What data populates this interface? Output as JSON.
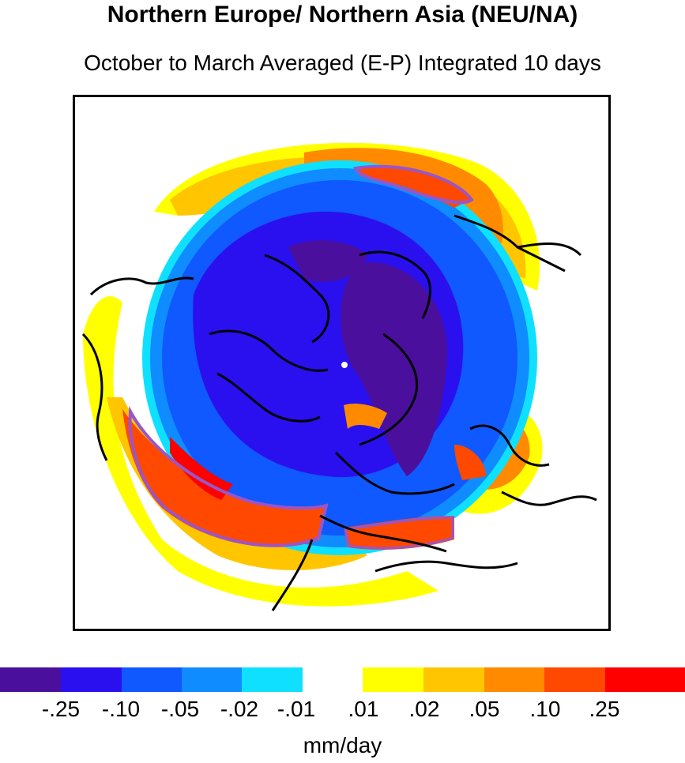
{
  "title": "Northern Europe/ Northern Asia (NEU/NA)",
  "subtitle": "October to March Averaged (E-P) Integrated 10 days",
  "map": {
    "projection": "north-polar-stereographic",
    "region": "Northern Europe/ Northern Asia (NEU/NA)",
    "pole_marker": "white dot at north pole"
  },
  "legend": {
    "negative": [
      {
        "label": "-.25",
        "color": "#4b0f9e"
      },
      {
        "label": "-.10",
        "color": "#2a10ee"
      },
      {
        "label": "-.05",
        "color": "#1058ff"
      },
      {
        "label": "-.02",
        "color": "#0f8cff"
      },
      {
        "label": "-.01",
        "color": "#10e0ff"
      }
    ],
    "positive": [
      {
        "label": ".01",
        "color": "#ffff00"
      },
      {
        "label": ".02",
        "color": "#ffc600"
      },
      {
        "label": ".05",
        "color": "#ff8a00"
      },
      {
        "label": ".10",
        "color": "#ff4800"
      },
      {
        "label": ".25",
        "color": "#ff0000"
      }
    ],
    "units": "mm/day"
  }
}
